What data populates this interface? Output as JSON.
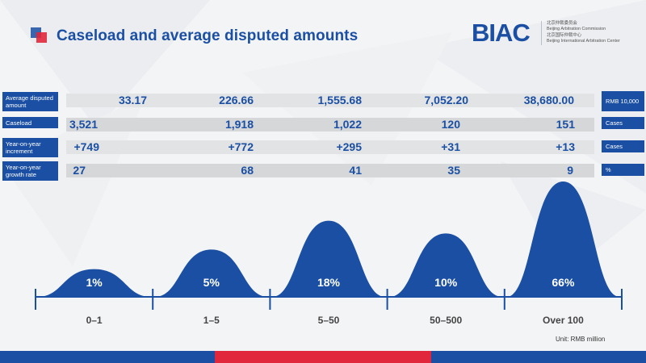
{
  "title": "Caseload and average disputed amounts",
  "logo": {
    "mark": "BIAC",
    "lines": [
      "北京仲裁委员会",
      "Beijing Arbitration Commission",
      "北京国际仲裁中心",
      "Beijing International Arbitration Center"
    ]
  },
  "table": {
    "rows": [
      {
        "label": "Average disputed amount",
        "values": [
          "33.17",
          "226.66",
          "1,555.68",
          "7,052.20",
          "38,680.00"
        ],
        "unit": "RMB 10,000"
      },
      {
        "label": "Caseload",
        "values": [
          "3,521",
          "1,918",
          "1,022",
          "120",
          "151"
        ],
        "unit": "Cases"
      },
      {
        "label": "Year-on-year increment",
        "values": [
          "+749",
          "+772",
          "+295",
          "+31",
          "+13"
        ],
        "unit": "Cases"
      },
      {
        "label": "Year-on-year growth rate",
        "values": [
          "27",
          "68",
          "41",
          "35",
          "9"
        ],
        "unit": "%"
      }
    ]
  },
  "chart_data": {
    "type": "area",
    "categories": [
      "0–1",
      "1–5",
      "5–50",
      "50–500",
      "Over 100"
    ],
    "values": [
      1,
      5,
      18,
      10,
      66
    ],
    "data_labels": [
      "1%",
      "5%",
      "18%",
      "10%",
      "66%"
    ],
    "peak_heights": [
      0.24,
      0.41,
      0.66,
      0.55,
      1.0
    ],
    "unit_note": "Unit: RMB million"
  },
  "colors": {
    "brand_blue": "#1a4fa3",
    "brand_red": "#e0273b",
    "band_gray": "#e2e3e5"
  }
}
